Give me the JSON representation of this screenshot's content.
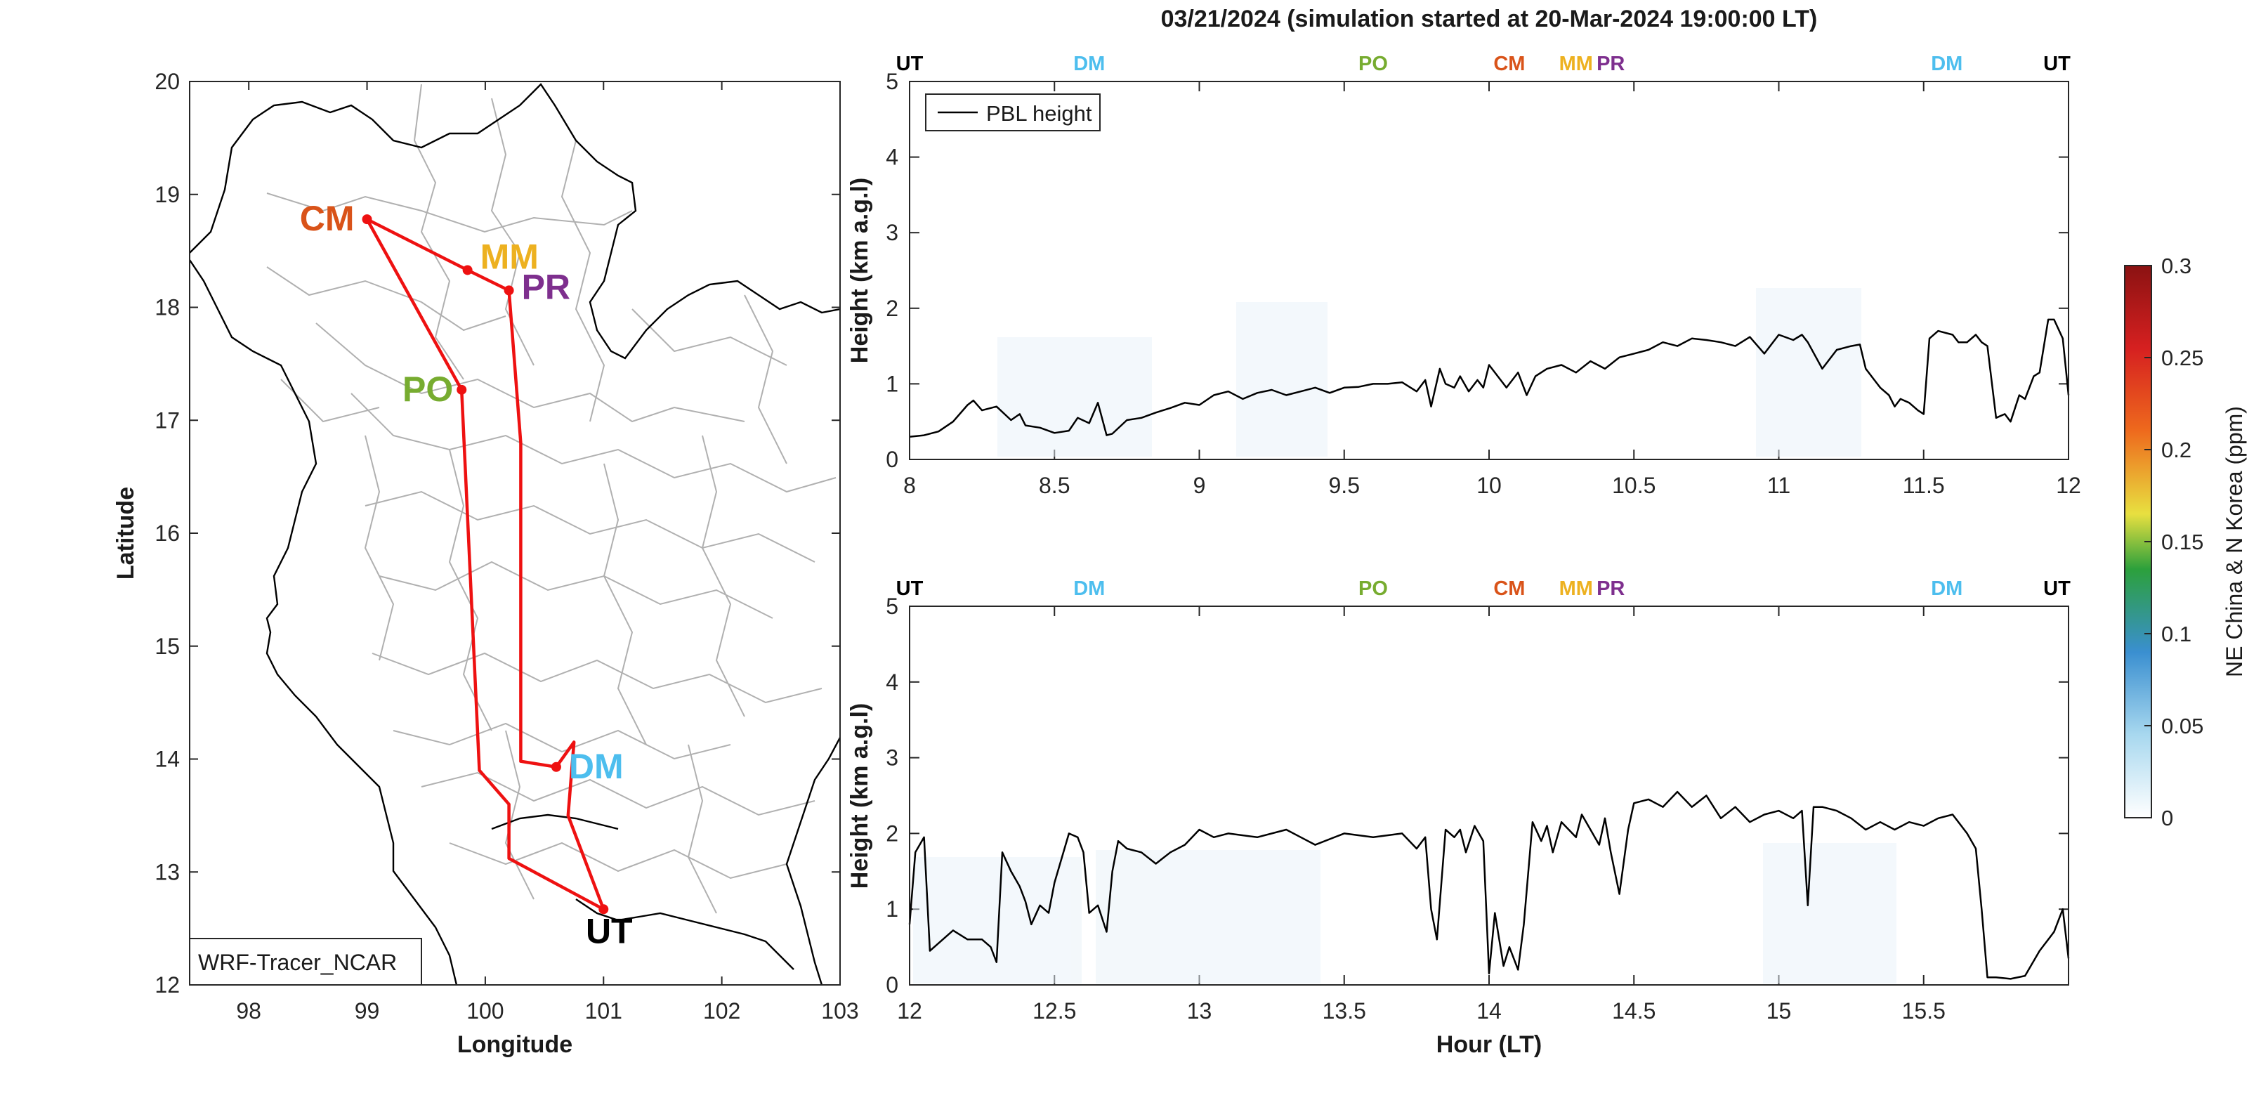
{
  "figure": {
    "title": "03/21/2024 (simulation started at 20-Mar-2024 19:00:00 LT)"
  },
  "chart_data": [
    {
      "type": "map",
      "xlabel": "Longitude",
      "ylabel": "Latitude",
      "xlim": [
        97.5,
        103
      ],
      "ylim": [
        12,
        20
      ],
      "xticks": [
        98,
        99,
        100,
        101,
        102,
        103
      ],
      "yticks": [
        12,
        13,
        14,
        15,
        16,
        17,
        18,
        19,
        20
      ],
      "annotation_box": "WRF-Tracer_NCAR",
      "route_color": "#ee1111",
      "sites": [
        {
          "code": "CM",
          "lon": 99.0,
          "lat": 18.78,
          "color": "#d95319"
        },
        {
          "code": "MM",
          "lon": 99.85,
          "lat": 18.33,
          "color": "#edb120"
        },
        {
          "code": "PR",
          "lon": 100.2,
          "lat": 18.15,
          "color": "#7e2f8e"
        },
        {
          "code": "PO",
          "lon": 99.8,
          "lat": 17.27,
          "color": "#77ac30"
        },
        {
          "code": "DM",
          "lon": 100.6,
          "lat": 13.93,
          "color": "#4dbeee"
        },
        {
          "code": "UT",
          "lon": 101.0,
          "lat": 12.67,
          "color": "#000000"
        }
      ],
      "route": [
        [
          101.0,
          12.67
        ],
        [
          100.2,
          13.12
        ],
        [
          100.2,
          13.6
        ],
        [
          99.95,
          13.9
        ],
        [
          99.8,
          17.27
        ],
        [
          99.0,
          18.78
        ],
        [
          99.85,
          18.33
        ],
        [
          100.2,
          18.15
        ],
        [
          100.3,
          16.8
        ],
        [
          100.3,
          13.98
        ],
        [
          100.6,
          13.93
        ],
        [
          100.75,
          14.15
        ],
        [
          100.7,
          13.5
        ],
        [
          101.0,
          12.67
        ]
      ]
    },
    {
      "type": "line",
      "panel": "top",
      "ylabel": "Height (km a.g.l)",
      "xlim": [
        8,
        12
      ],
      "ylim": [
        0,
        5
      ],
      "xticks": [
        8,
        8.5,
        9,
        9.5,
        10,
        10.5,
        11,
        11.5,
        12
      ],
      "xtick_labels": [
        "8",
        "8.5",
        "9",
        "9.5",
        "10",
        "10.5",
        "11",
        "11.5",
        "12"
      ],
      "yticks": [
        0,
        1,
        2,
        3,
        4,
        5
      ],
      "legend": {
        "entries": [
          "PBL height"
        ],
        "position": "top-left"
      },
      "site_markers": [
        {
          "code": "UT",
          "hour": 8.0,
          "color": "#000000"
        },
        {
          "code": "DM",
          "hour": 8.62,
          "color": "#4dbeee"
        },
        {
          "code": "PO",
          "hour": 9.6,
          "color": "#77ac30"
        },
        {
          "code": "CM",
          "hour": 10.07,
          "color": "#d95319"
        },
        {
          "code": "MM",
          "hour": 10.3,
          "color": "#edb120"
        },
        {
          "code": "PR",
          "hour": 10.42,
          "color": "#7e2f8e"
        },
        {
          "code": "DM",
          "hour": 11.58,
          "color": "#4dbeee"
        },
        {
          "code": "UT",
          "hour": 11.96,
          "color": "#000000"
        }
      ],
      "series": [
        {
          "name": "PBL height",
          "x": [
            8.0,
            8.05,
            8.1,
            8.15,
            8.2,
            8.22,
            8.25,
            8.3,
            8.35,
            8.38,
            8.4,
            8.45,
            8.5,
            8.55,
            8.58,
            8.62,
            8.65,
            8.68,
            8.7,
            8.75,
            8.8,
            8.85,
            8.9,
            8.95,
            9.0,
            9.05,
            9.1,
            9.15,
            9.2,
            9.25,
            9.3,
            9.35,
            9.4,
            9.45,
            9.5,
            9.55,
            9.6,
            9.65,
            9.7,
            9.75,
            9.78,
            9.8,
            9.83,
            9.85,
            9.88,
            9.9,
            9.93,
            9.96,
            9.98,
            10.0,
            10.03,
            10.06,
            10.1,
            10.13,
            10.16,
            10.2,
            10.25,
            10.3,
            10.35,
            10.4,
            10.45,
            10.5,
            10.55,
            10.6,
            10.65,
            10.7,
            10.75,
            10.8,
            10.85,
            10.9,
            10.95,
            11.0,
            11.05,
            11.08,
            11.1,
            11.15,
            11.2,
            11.25,
            11.28,
            11.3,
            11.35,
            11.38,
            11.4,
            11.42,
            11.45,
            11.48,
            11.5,
            11.52,
            11.55,
            11.6,
            11.62,
            11.65,
            11.68,
            11.7,
            11.72,
            11.75,
            11.78,
            11.8,
            11.83,
            11.85,
            11.88,
            11.9,
            11.93,
            11.95,
            11.98,
            12.0
          ],
          "y": [
            0.3,
            0.32,
            0.37,
            0.5,
            0.72,
            0.78,
            0.65,
            0.7,
            0.52,
            0.6,
            0.45,
            0.42,
            0.35,
            0.38,
            0.55,
            0.48,
            0.75,
            0.32,
            0.34,
            0.52,
            0.55,
            0.62,
            0.68,
            0.75,
            0.72,
            0.85,
            0.9,
            0.8,
            0.88,
            0.92,
            0.85,
            0.9,
            0.95,
            0.88,
            0.95,
            0.96,
            1.0,
            1.0,
            1.02,
            0.9,
            1.05,
            0.7,
            1.2,
            1.0,
            0.95,
            1.1,
            0.9,
            1.05,
            0.95,
            1.25,
            1.1,
            0.95,
            1.15,
            0.85,
            1.1,
            1.2,
            1.25,
            1.15,
            1.3,
            1.2,
            1.35,
            1.4,
            1.45,
            1.55,
            1.5,
            1.6,
            1.58,
            1.55,
            1.5,
            1.62,
            1.4,
            1.65,
            1.58,
            1.65,
            1.55,
            1.2,
            1.45,
            1.5,
            1.52,
            1.2,
            0.95,
            0.85,
            0.7,
            0.8,
            0.75,
            0.65,
            0.6,
            1.6,
            1.7,
            1.65,
            1.55,
            1.55,
            1.65,
            1.55,
            1.5,
            0.55,
            0.6,
            0.5,
            0.85,
            0.8,
            1.1,
            1.15,
            1.85,
            1.85,
            1.6,
            0.85
          ]
        }
      ]
    },
    {
      "type": "line",
      "panel": "bottom",
      "xlabel": "Hour (LT)",
      "ylabel": "Height (km a.g.l)",
      "xlim": [
        12,
        16
      ],
      "ylim": [
        0,
        5
      ],
      "xticks": [
        12,
        12.5,
        13,
        13.5,
        14,
        14.5,
        15,
        15.5
      ],
      "xtick_labels": [
        "12",
        "12.5",
        "13",
        "13.5",
        "14",
        "14.5",
        "15",
        "15.5"
      ],
      "yticks": [
        0,
        1,
        2,
        3,
        4,
        5
      ],
      "site_markers": [
        {
          "code": "UT",
          "hour": 12.0,
          "color": "#000000"
        },
        {
          "code": "DM",
          "hour": 12.62,
          "color": "#4dbeee"
        },
        {
          "code": "PO",
          "hour": 13.6,
          "color": "#77ac30"
        },
        {
          "code": "CM",
          "hour": 14.07,
          "color": "#d95319"
        },
        {
          "code": "MM",
          "hour": 14.3,
          "color": "#edb120"
        },
        {
          "code": "PR",
          "hour": 14.42,
          "color": "#7e2f8e"
        },
        {
          "code": "DM",
          "hour": 15.58,
          "color": "#4dbeee"
        },
        {
          "code": "UT",
          "hour": 15.96,
          "color": "#000000"
        }
      ],
      "series": [
        {
          "name": "PBL height",
          "x": [
            12.0,
            12.02,
            12.05,
            12.07,
            12.1,
            12.15,
            12.2,
            12.25,
            12.28,
            12.3,
            12.32,
            12.35,
            12.38,
            12.4,
            12.42,
            12.45,
            12.48,
            12.5,
            12.55,
            12.58,
            12.6,
            12.62,
            12.65,
            12.68,
            12.7,
            12.72,
            12.75,
            12.8,
            12.85,
            12.9,
            12.95,
            13.0,
            13.05,
            13.1,
            13.2,
            13.3,
            13.35,
            13.4,
            13.5,
            13.6,
            13.7,
            13.75,
            13.78,
            13.8,
            13.82,
            13.85,
            13.88,
            13.9,
            13.92,
            13.95,
            13.98,
            14.0,
            14.02,
            14.05,
            14.07,
            14.1,
            14.12,
            14.15,
            14.18,
            14.2,
            14.22,
            14.25,
            14.3,
            14.32,
            14.35,
            14.38,
            14.4,
            14.42,
            14.45,
            14.48,
            14.5,
            14.55,
            14.6,
            14.65,
            14.7,
            14.75,
            14.8,
            14.85,
            14.9,
            14.95,
            15.0,
            15.05,
            15.08,
            15.1,
            15.12,
            15.15,
            15.2,
            15.25,
            15.3,
            15.35,
            15.4,
            15.45,
            15.5,
            15.55,
            15.6,
            15.65,
            15.68,
            15.7,
            15.72,
            15.75,
            15.8,
            15.85,
            15.9,
            15.95,
            15.98,
            16.0
          ],
          "y": [
            0.8,
            1.75,
            1.95,
            0.45,
            0.55,
            0.72,
            0.6,
            0.6,
            0.5,
            0.3,
            1.75,
            1.5,
            1.3,
            1.1,
            0.8,
            1.05,
            0.95,
            1.35,
            2.0,
            1.95,
            1.75,
            0.95,
            1.05,
            0.7,
            1.5,
            1.9,
            1.8,
            1.75,
            1.6,
            1.75,
            1.85,
            2.05,
            1.95,
            2.0,
            1.95,
            2.05,
            1.95,
            1.85,
            2.0,
            1.95,
            2.0,
            1.8,
            1.95,
            1.0,
            0.6,
            2.05,
            1.95,
            2.05,
            1.75,
            2.1,
            1.9,
            0.15,
            0.95,
            0.25,
            0.5,
            0.2,
            0.8,
            2.15,
            1.9,
            2.1,
            1.75,
            2.15,
            1.95,
            2.25,
            2.05,
            1.85,
            2.2,
            1.75,
            1.2,
            2.05,
            2.4,
            2.45,
            2.35,
            2.55,
            2.35,
            2.5,
            2.2,
            2.35,
            2.15,
            2.25,
            2.3,
            2.2,
            2.3,
            1.05,
            2.35,
            2.35,
            2.3,
            2.2,
            2.05,
            2.15,
            2.05,
            2.15,
            2.1,
            2.2,
            2.25,
            2.0,
            1.8,
            1.0,
            0.1,
            0.1,
            0.08,
            0.12,
            0.45,
            0.7,
            1.0,
            0.35
          ]
        }
      ]
    },
    {
      "type": "colorbar",
      "label": "NE China & N Korea (ppm)",
      "range": [
        0,
        0.3
      ],
      "ticks": [
        0,
        0.05,
        0.1,
        0.15,
        0.2,
        0.25,
        0.3
      ],
      "tick_labels": [
        "0",
        "0.05",
        "0.1",
        "0.15",
        "0.2",
        "0.25",
        "0.3"
      ],
      "colors": [
        "#ffffff",
        "#a8d8ef",
        "#3a8fd0",
        "#2ca03c",
        "#e8e040",
        "#ee6a1d",
        "#d62020",
        "#8b1212"
      ]
    }
  ]
}
